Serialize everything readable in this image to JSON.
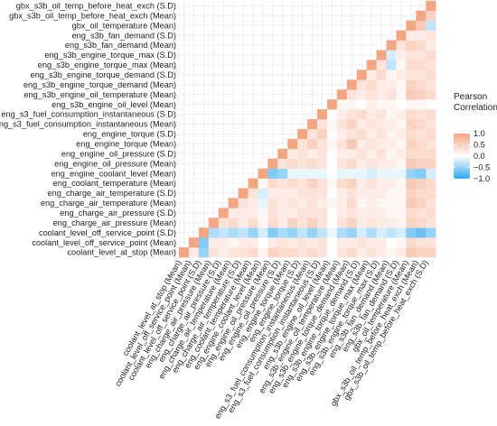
{
  "chart_data": {
    "type": "heatmap",
    "variables": [
      "coolant_level_at_stop (Mean)",
      "coolant_level_off_service_point (Mean)",
      "coolant_level_off_service_point (S.D)",
      "eng_charge_air_pressure (Mean)",
      "eng_charge_air_pressure (S.D)",
      "eng_charge_air_temperature (Mean)",
      "eng_charge_air_temperature (S.D)",
      "eng_coolant_temperature (Mean)",
      "eng_engine_coolant_level (Mean)",
      "eng_engine_oil_pressure (Mean)",
      "eng_engine_oil_pressure (S.D)",
      "eng_engine_torque (Mean)",
      "eng_engine_torque (S.D)",
      "eng_s3_fuel_consumption_instantaneous (Mean)",
      "eng_s3_fuel_consumption_instantaneous (S.D)",
      "eng_s3b_engine_oil_level (Mean)",
      "eng_s3b_engine_oil_temperature (Mean)",
      "eng_s3b_engine_torque_demand (Mean)",
      "eng_s3b_engine_torque_demand (S.D)",
      "eng_s3b_engine_torque_max (Mean)",
      "eng_s3b_engine_torque_max (S.D)",
      "eng_s3b_fan_demand (Mean)",
      "eng_s3b_fan_demand (S.D)",
      "gbx_oil_temperature (Mean)",
      "gbx_s3b_oil_temp_before_heat_exch (Mean)",
      "gbx_s3b_oil_temp_before_heat_exch (S.D)"
    ],
    "legend": {
      "title": "Pearson Correlation",
      "breaks": [
        1.0,
        0.5,
        0.0,
        -0.5,
        -1.0
      ],
      "break_labels": [
        "1.0",
        "0.5",
        "0.0",
        "−0.5",
        "−1.0"
      ],
      "limits": [
        -1,
        1
      ],
      "placement": "right"
    },
    "colors": {
      "positive": "#F4A582",
      "neutral": "#FFFFFF",
      "negative": "#2DA8EF",
      "grid": "#EBEBEB"
    },
    "layout_note": "lower triangle incl. diagonal; rows listed bottom-to-top, columns left-to-right",
    "matrix": [
      [
        1.0,
        0.2,
        -0.5,
        0.3,
        0.2,
        0.3,
        0.3,
        0.4,
        0.1,
        0.5,
        0.4,
        0.4,
        0.3,
        0.4,
        0.3,
        0.0,
        0.3,
        0.4,
        0.2,
        0.3,
        0.2,
        0.1,
        0.2,
        0.6,
        0.5,
        0.5
      ],
      [
        null,
        1.0,
        -0.6,
        0.2,
        0.2,
        0.1,
        0.2,
        0.2,
        0.0,
        0.2,
        0.3,
        0.2,
        0.3,
        0.2,
        0.3,
        0.0,
        0.2,
        0.2,
        0.3,
        0.2,
        0.2,
        0.0,
        0.1,
        0.4,
        0.3,
        0.3
      ],
      [
        null,
        null,
        1.0,
        -0.4,
        -0.3,
        -0.4,
        -0.3,
        -0.5,
        -0.2,
        -0.6,
        -0.4,
        -0.5,
        -0.3,
        -0.5,
        -0.3,
        -0.1,
        -0.4,
        -0.5,
        -0.2,
        -0.4,
        -0.2,
        -0.3,
        -0.2,
        -0.6,
        -0.7,
        -0.5
      ],
      [
        null,
        null,
        null,
        1.0,
        0.3,
        0.4,
        0.2,
        0.4,
        0.1,
        0.4,
        0.2,
        0.5,
        0.3,
        0.5,
        0.3,
        0.0,
        0.3,
        0.5,
        0.2,
        0.3,
        0.2,
        0.2,
        0.1,
        0.5,
        0.4,
        0.3
      ],
      [
        null,
        null,
        null,
        null,
        1.0,
        0.2,
        0.2,
        0.2,
        0.1,
        0.3,
        0.2,
        0.2,
        0.3,
        0.3,
        0.3,
        0.0,
        0.2,
        0.3,
        0.2,
        0.2,
        0.2,
        0.1,
        0.1,
        0.4,
        0.3,
        0.4
      ],
      [
        null,
        null,
        null,
        null,
        null,
        1.0,
        0.3,
        0.2,
        -0.1,
        0.3,
        0.2,
        0.3,
        0.2,
        0.3,
        0.2,
        0.1,
        0.2,
        0.4,
        0.1,
        0.2,
        0.1,
        0.1,
        0.1,
        0.6,
        0.5,
        0.3
      ],
      [
        null,
        null,
        null,
        null,
        null,
        null,
        1.0,
        0.3,
        -0.2,
        0.2,
        0.2,
        0.2,
        0.3,
        0.3,
        0.3,
        0.0,
        0.2,
        0.3,
        0.2,
        0.2,
        0.2,
        0.1,
        0.1,
        0.5,
        0.4,
        0.4
      ],
      [
        null,
        null,
        null,
        null,
        null,
        null,
        null,
        1.0,
        0.1,
        0.4,
        0.3,
        0.4,
        0.3,
        0.5,
        0.3,
        0.1,
        0.4,
        0.5,
        0.2,
        0.3,
        0.2,
        0.2,
        0.1,
        0.6,
        0.5,
        0.4
      ],
      [
        null,
        null,
        null,
        null,
        null,
        null,
        null,
        null,
        1.0,
        -0.6,
        -0.5,
        -0.1,
        -0.1,
        -0.1,
        -0.1,
        0.0,
        -0.1,
        -0.1,
        -0.1,
        -0.2,
        -0.1,
        -0.1,
        -0.1,
        -0.5,
        -0.6,
        -0.2
      ],
      [
        null,
        null,
        null,
        null,
        null,
        null,
        null,
        null,
        null,
        1.0,
        0.3,
        0.4,
        0.3,
        0.4,
        0.3,
        0.0,
        0.3,
        0.4,
        0.2,
        0.3,
        0.2,
        0.2,
        0.1,
        0.6,
        0.5,
        0.5
      ],
      [
        null,
        null,
        null,
        null,
        null,
        null,
        null,
        null,
        null,
        null,
        1.0,
        0.2,
        0.3,
        0.2,
        0.3,
        0.0,
        0.2,
        0.2,
        0.3,
        0.2,
        0.3,
        0.1,
        0.2,
        0.4,
        0.4,
        0.4
      ],
      [
        null,
        null,
        null,
        null,
        null,
        null,
        null,
        null,
        null,
        null,
        null,
        1.0,
        0.3,
        0.5,
        0.3,
        0.1,
        0.3,
        0.6,
        0.2,
        0.3,
        0.2,
        0.2,
        0.1,
        0.5,
        0.4,
        0.3
      ],
      [
        null,
        null,
        null,
        null,
        null,
        null,
        null,
        null,
        null,
        null,
        null,
        null,
        1.0,
        0.3,
        0.5,
        0.0,
        0.2,
        0.3,
        0.4,
        0.2,
        0.3,
        0.1,
        0.2,
        0.4,
        0.3,
        0.4
      ],
      [
        null,
        null,
        null,
        null,
        null,
        null,
        null,
        null,
        null,
        null,
        null,
        null,
        null,
        1.0,
        0.3,
        0.1,
        0.3,
        0.5,
        0.2,
        0.3,
        0.2,
        0.2,
        0.1,
        0.5,
        0.4,
        0.3
      ],
      [
        null,
        null,
        null,
        null,
        null,
        null,
        null,
        null,
        null,
        null,
        null,
        null,
        null,
        null,
        1.0,
        0.0,
        0.2,
        0.3,
        0.4,
        0.2,
        0.3,
        0.1,
        0.2,
        0.4,
        0.3,
        0.4
      ],
      [
        null,
        null,
        null,
        null,
        null,
        null,
        null,
        null,
        null,
        null,
        null,
        null,
        null,
        null,
        null,
        1.0,
        0.1,
        0.1,
        0.0,
        0.2,
        0.1,
        0.1,
        0.0,
        0.1,
        0.1,
        0.0
      ],
      [
        null,
        null,
        null,
        null,
        null,
        null,
        null,
        null,
        null,
        null,
        null,
        null,
        null,
        null,
        null,
        null,
        1.0,
        0.3,
        0.2,
        0.3,
        0.2,
        0.3,
        0.1,
        0.6,
        0.5,
        0.4
      ],
      [
        null,
        null,
        null,
        null,
        null,
        null,
        null,
        null,
        null,
        null,
        null,
        null,
        null,
        null,
        null,
        null,
        null,
        1.0,
        0.3,
        0.4,
        0.2,
        0.2,
        0.1,
        0.5,
        0.4,
        0.3
      ],
      [
        null,
        null,
        null,
        null,
        null,
        null,
        null,
        null,
        null,
        null,
        null,
        null,
        null,
        null,
        null,
        null,
        null,
        null,
        1.0,
        0.2,
        0.4,
        0.1,
        0.2,
        0.3,
        0.3,
        0.4
      ],
      [
        null,
        null,
        null,
        null,
        null,
        null,
        null,
        null,
        null,
        null,
        null,
        null,
        null,
        null,
        null,
        null,
        null,
        null,
        null,
        1.0,
        0.3,
        -0.3,
        0.1,
        0.4,
        0.4,
        0.3
      ],
      [
        null,
        null,
        null,
        null,
        null,
        null,
        null,
        null,
        null,
        null,
        null,
        null,
        null,
        null,
        null,
        null,
        null,
        null,
        null,
        null,
        1.0,
        -0.2,
        0.2,
        0.3,
        0.3,
        0.4
      ],
      [
        null,
        null,
        null,
        null,
        null,
        null,
        null,
        null,
        null,
        null,
        null,
        null,
        null,
        null,
        null,
        null,
        null,
        null,
        null,
        null,
        null,
        1.0,
        0.3,
        0.5,
        0.4,
        0.2
      ],
      [
        null,
        null,
        null,
        null,
        null,
        null,
        null,
        null,
        null,
        null,
        null,
        null,
        null,
        null,
        null,
        null,
        null,
        null,
        null,
        null,
        null,
        null,
        1.0,
        0.2,
        0.2,
        0.3
      ],
      [
        null,
        null,
        null,
        null,
        null,
        null,
        null,
        null,
        null,
        null,
        null,
        null,
        null,
        null,
        null,
        null,
        null,
        null,
        null,
        null,
        null,
        null,
        null,
        1.0,
        0.6,
        -0.3
      ],
      [
        null,
        null,
        null,
        null,
        null,
        null,
        null,
        null,
        null,
        null,
        null,
        null,
        null,
        null,
        null,
        null,
        null,
        null,
        null,
        null,
        null,
        null,
        null,
        null,
        1.0,
        0.5
      ],
      [
        null,
        null,
        null,
        null,
        null,
        null,
        null,
        null,
        null,
        null,
        null,
        null,
        null,
        null,
        null,
        null,
        null,
        null,
        null,
        null,
        null,
        null,
        null,
        null,
        null,
        1.0
      ]
    ]
  }
}
